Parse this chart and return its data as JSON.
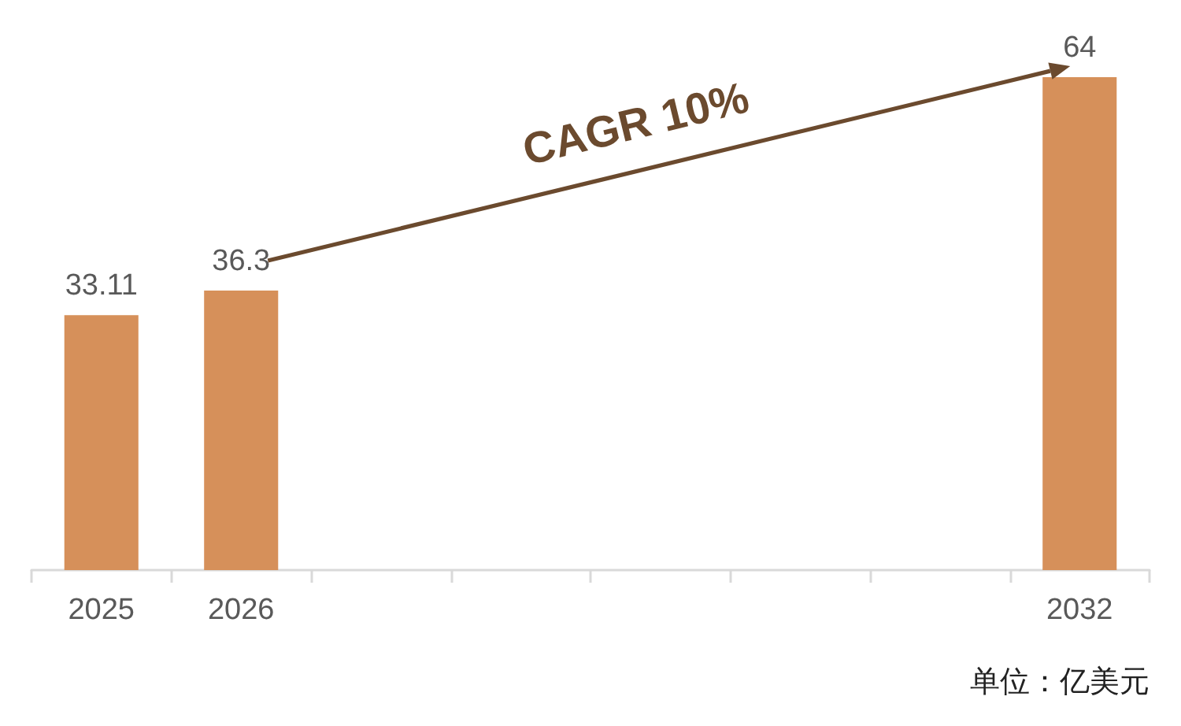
{
  "chart_data": {
    "type": "bar",
    "categories": [
      "2025",
      "2026",
      null,
      null,
      null,
      null,
      null,
      "2032"
    ],
    "values": [
      33.11,
      36.3,
      null,
      null,
      null,
      null,
      null,
      64
    ],
    "color": "#d6905a",
    "data_labels": true,
    "annotations": [
      "CAGR 10%",
      "单位：亿美元"
    ]
  }
}
